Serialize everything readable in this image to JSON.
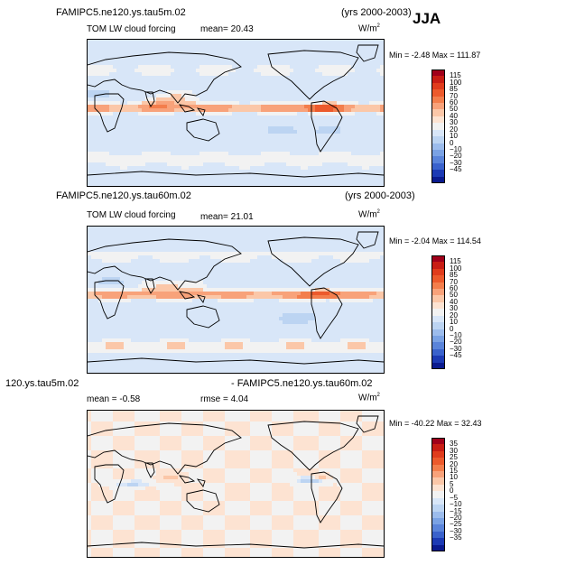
{
  "season": "JJA",
  "panels": [
    {
      "title_left": "FAMIPC5.ne120.ys.tau5m.02",
      "title_right": "(yrs 2000-2003)",
      "variable": "TOM LW cloud forcing",
      "mean_text": "mean=  20.43",
      "rmse_text": "",
      "units": "W/m",
      "units_exp": "2",
      "minmax": "Min =  -2.48 Max = 111.87",
      "kind": "field",
      "seed": 1
    },
    {
      "title_left": "FAMIPC5.ne120.ys.tau60m.02",
      "title_right": "(yrs 2000-2003)",
      "variable": "TOM LW cloud forcing",
      "mean_text": "mean=  21.01",
      "rmse_text": "",
      "units": "W/m",
      "units_exp": "2",
      "minmax": "Min =  -2.04 Max = 114.54",
      "kind": "field",
      "seed": 2
    },
    {
      "title_left": "120.ys.tau5m.02",
      "title_right": "- FAMIPC5.ne120.ys.tau60m.02",
      "variable": "",
      "mean_text": "mean =  -0.58",
      "rmse_text": "rmse =   4.04",
      "units": "W/m",
      "units_exp": "2",
      "minmax": "Min = -40.22 Max =  32.43",
      "kind": "diff",
      "seed": 3
    }
  ],
  "colorbars": [
    {
      "labels": [
        "115",
        "100",
        "85",
        "70",
        "60",
        "50",
        "40",
        "30",
        "20",
        "10",
        "0",
        "−10",
        "−20",
        "−30",
        "−45"
      ],
      "colors": [
        "#a0001a",
        "#c81d14",
        "#e03c1c",
        "#ec5a2c",
        "#f37e4c",
        "#f8a27a",
        "#fbc7a8",
        "#fde3d2",
        "#f2f2f2",
        "#d8e6f8",
        "#bcd4f2",
        "#9cbcec",
        "#7aa2e4",
        "#5a84da",
        "#3a62cc",
        "#1c3ab4",
        "#0a1a8e"
      ]
    },
    {
      "labels": [
        "115",
        "100",
        "85",
        "70",
        "60",
        "50",
        "40",
        "30",
        "20",
        "10",
        "0",
        "−10",
        "−20",
        "−30",
        "−45"
      ],
      "colors": [
        "#a0001a",
        "#c81d14",
        "#e03c1c",
        "#ec5a2c",
        "#f37e4c",
        "#f8a27a",
        "#fbc7a8",
        "#fde3d2",
        "#f2f2f2",
        "#d8e6f8",
        "#bcd4f2",
        "#9cbcec",
        "#7aa2e4",
        "#5a84da",
        "#3a62cc",
        "#1c3ab4",
        "#0a1a8e"
      ]
    },
    {
      "labels": [
        "35",
        "30",
        "25",
        "20",
        "15",
        "10",
        "5",
        "0",
        "−5",
        "−10",
        "−15",
        "−20",
        "−25",
        "−30",
        "−35"
      ],
      "colors": [
        "#a0001a",
        "#c81d14",
        "#e03c1c",
        "#ec5a2c",
        "#f37e4c",
        "#f8a27a",
        "#fbc7a8",
        "#fde3d2",
        "#f2f2f2",
        "#d8e6f8",
        "#bcd4f2",
        "#9cbcec",
        "#7aa2e4",
        "#5a84da",
        "#3a62cc",
        "#1c3ab4",
        "#0a1a8e"
      ]
    }
  ],
  "chart_data": [
    {
      "type": "heatmap",
      "title": "FAMIPC5.ne120.ys.tau5m.02",
      "subtitle": "TOM LW cloud forcing",
      "period": "(yrs 2000-2003)",
      "season": "JJA",
      "units": "W/m2",
      "mean": 20.43,
      "min": -2.48,
      "max": 111.87,
      "contour_levels": [
        -45,
        -30,
        -20,
        -10,
        0,
        10,
        20,
        30,
        40,
        50,
        60,
        70,
        85,
        100,
        115
      ]
    },
    {
      "type": "heatmap",
      "title": "FAMIPC5.ne120.ys.tau60m.02",
      "subtitle": "TOM LW cloud forcing",
      "period": "(yrs 2000-2003)",
      "season": "JJA",
      "units": "W/m2",
      "mean": 21.01,
      "min": -2.04,
      "max": 114.54,
      "contour_levels": [
        -45,
        -30,
        -20,
        -10,
        0,
        10,
        20,
        30,
        40,
        50,
        60,
        70,
        85,
        100,
        115
      ]
    },
    {
      "type": "heatmap",
      "title": "120.ys.tau5m.02 - FAMIPC5.ne120.ys.tau60m.02",
      "season": "JJA",
      "units": "W/m2",
      "mean": -0.58,
      "rmse": 4.04,
      "min": -40.22,
      "max": 32.43,
      "contour_levels": [
        -35,
        -30,
        -25,
        -20,
        -15,
        -10,
        -5,
        0,
        5,
        10,
        15,
        20,
        25,
        30,
        35
      ]
    }
  ]
}
